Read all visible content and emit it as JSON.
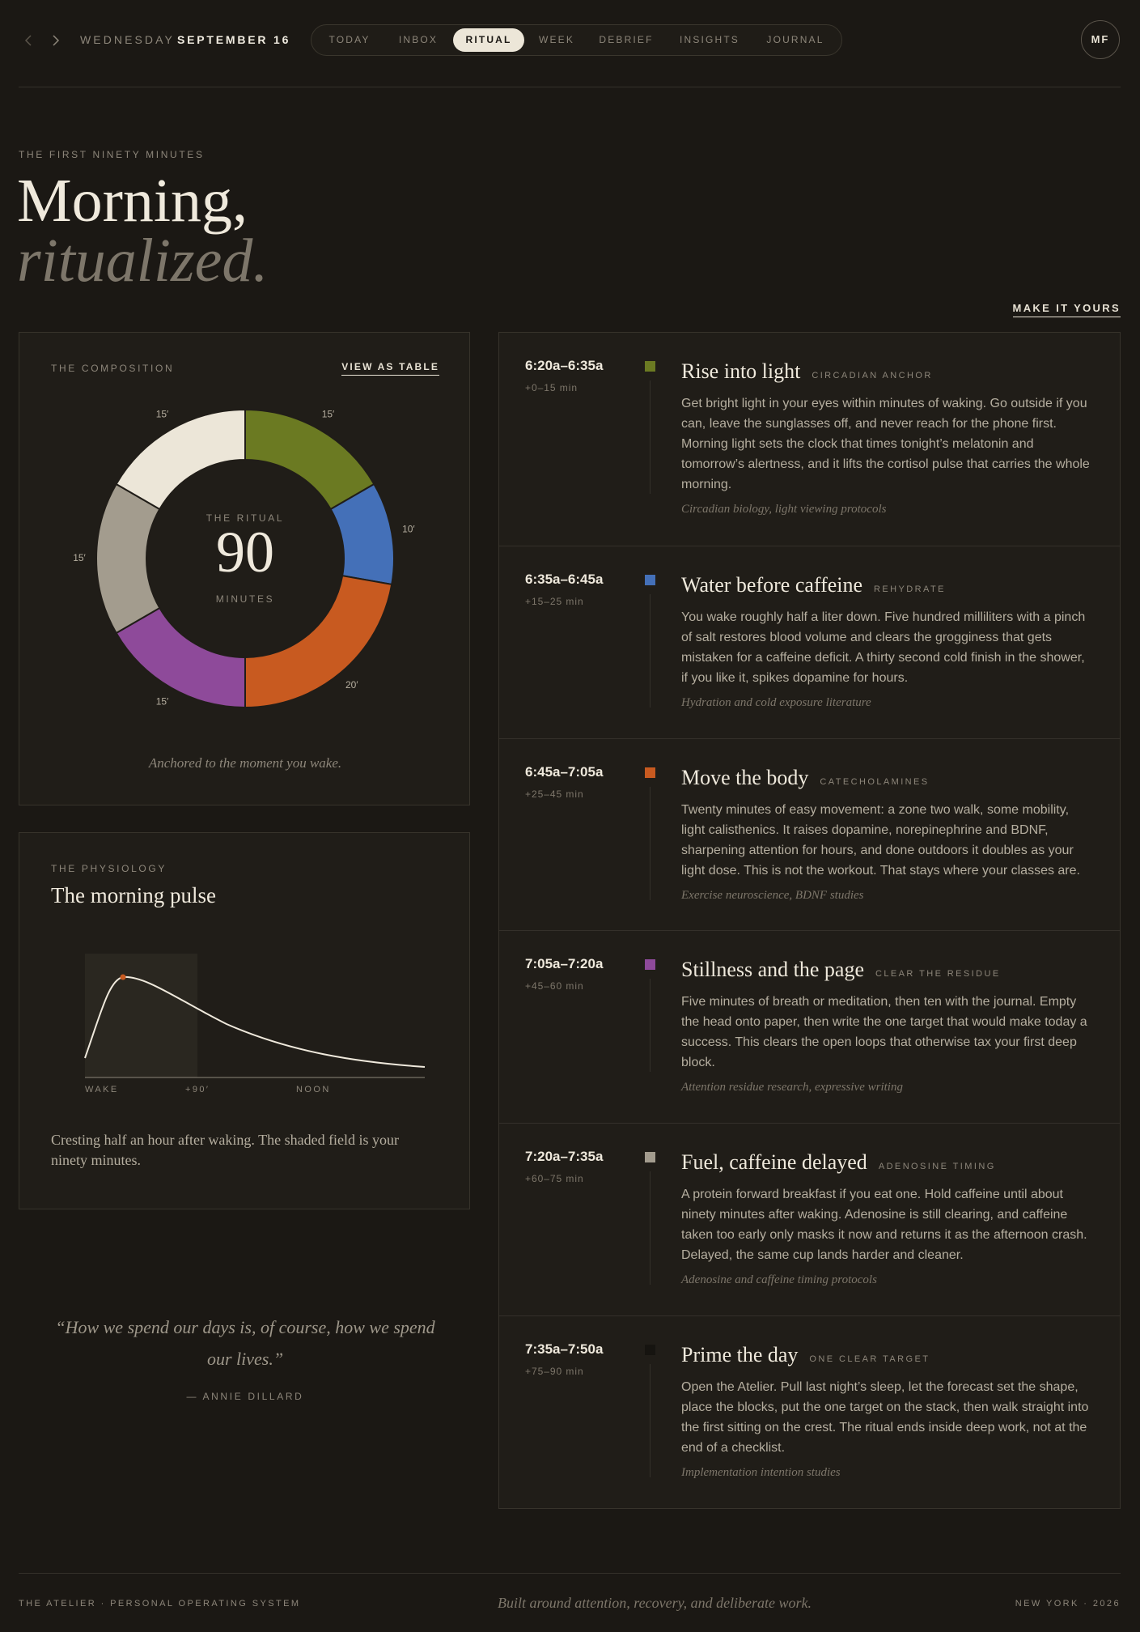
{
  "header": {
    "day": "WEDNESDAY",
    "date": "SEPTEMBER 16",
    "nav": [
      "TODAY",
      "INBOX",
      "RITUAL",
      "WEEK",
      "DEBRIEF",
      "INSIGHTS",
      "JOURNAL"
    ],
    "active": 2,
    "avatar": "MF"
  },
  "hero": {
    "eyebrow": "THE FIRST NINETY MINUTES",
    "title_line1": "Morning,",
    "title_line2": "ritualized.",
    "cta": "MAKE IT YOURS"
  },
  "composition": {
    "eyebrow": "THE COMPOSITION",
    "link": "VIEW AS TABLE",
    "center_label": "THE RITUAL",
    "center_value": "90",
    "center_unit": "MINUTES",
    "caption": "Anchored to the moment you wake.",
    "segments": [
      {
        "value": 15,
        "label": "15′",
        "color": "#6b7a22"
      },
      {
        "value": 10,
        "label": "10′",
        "color": "#4470b8"
      },
      {
        "value": 20,
        "label": "20′",
        "color": "#c85a20"
      },
      {
        "value": 15,
        "label": "15′",
        "color": "#8e4a9a"
      },
      {
        "value": 15,
        "label": "15′",
        "color": "#a39c8e"
      },
      {
        "value": 15,
        "label": "15′",
        "color": "#ece6d8"
      }
    ]
  },
  "physiology": {
    "eyebrow": "THE PHYSIOLOGY",
    "title": "The morning pulse",
    "axis_labels": [
      "WAKE",
      "+90′",
      "NOON"
    ],
    "caption": "Cresting half an hour after waking. The shaded field is your ninety minutes."
  },
  "quote": {
    "text": "“How we spend our days is, of course, how we spend our lives.”",
    "attribution": "— ANNIE DILLARD"
  },
  "timeline": [
    {
      "time": "6:20a–6:35a",
      "offset": "+0–15 min",
      "color": "#6b7a22",
      "title": "Rise into light",
      "tag": "CIRCADIAN ANCHOR",
      "body": "Get bright light in your eyes within minutes of waking. Go outside if you can, leave the sunglasses off, and never reach for the phone first. Morning light sets the clock that times tonight’s melatonin and tomorrow’s alertness, and it lifts the cortisol pulse that carries the whole morning.",
      "source": "Circadian biology, light viewing protocols"
    },
    {
      "time": "6:35a–6:45a",
      "offset": "+15–25 min",
      "color": "#4470b8",
      "title": "Water before caffeine",
      "tag": "REHYDRATE",
      "body": "You wake roughly half a liter down. Five hundred milliliters with a pinch of salt restores blood volume and clears the grogginess that gets mistaken for a caffeine deficit. A thirty second cold finish in the shower, if you like it, spikes dopamine for hours.",
      "source": "Hydration and cold exposure literature"
    },
    {
      "time": "6:45a–7:05a",
      "offset": "+25–45 min",
      "color": "#c85a20",
      "title": "Move the body",
      "tag": "CATECHOLAMINES",
      "body": "Twenty minutes of easy movement: a zone two walk, some mobility, light calisthenics. It raises dopamine, norepinephrine and BDNF, sharpening attention for hours, and done outdoors it doubles as your light dose. This is not the workout. That stays where your classes are.",
      "source": "Exercise neuroscience, BDNF studies"
    },
    {
      "time": "7:05a–7:20a",
      "offset": "+45–60 min",
      "color": "#8e4a9a",
      "title": "Stillness and the page",
      "tag": "CLEAR THE RESIDUE",
      "body": "Five minutes of breath or meditation, then ten with the journal. Empty the head onto paper, then write the one target that would make today a success. This clears the open loops that otherwise tax your first deep block.",
      "source": "Attention residue research, expressive writing"
    },
    {
      "time": "7:20a–7:35a",
      "offset": "+60–75 min",
      "color": "#a39c8e",
      "title": "Fuel, caffeine delayed",
      "tag": "ADENOSINE TIMING",
      "body": "A protein forward breakfast if you eat one. Hold caffeine until about ninety minutes after waking. Adenosine is still clearing, and caffeine taken too early only masks it now and returns it as the afternoon crash. Delayed, the same cup lands harder and cleaner.",
      "source": "Adenosine and caffeine timing protocols"
    },
    {
      "time": "7:35a–7:50a",
      "offset": "+75–90 min",
      "color": "#161410",
      "title": "Prime the day",
      "tag": "ONE CLEAR TARGET",
      "body": "Open the Atelier. Pull last night’s sleep, let the forecast set the shape, place the blocks, put the one target on the stack, then walk straight into the first sitting on the crest. The ritual ends inside deep work, not at the end of a checklist.",
      "source": "Implementation intention studies"
    }
  ],
  "footer": {
    "left": "THE ATELIER · PERSONAL OPERATING SYSTEM",
    "center": "Built around attention, recovery, and deliberate work.",
    "right": "NEW YORK · 2026"
  }
}
